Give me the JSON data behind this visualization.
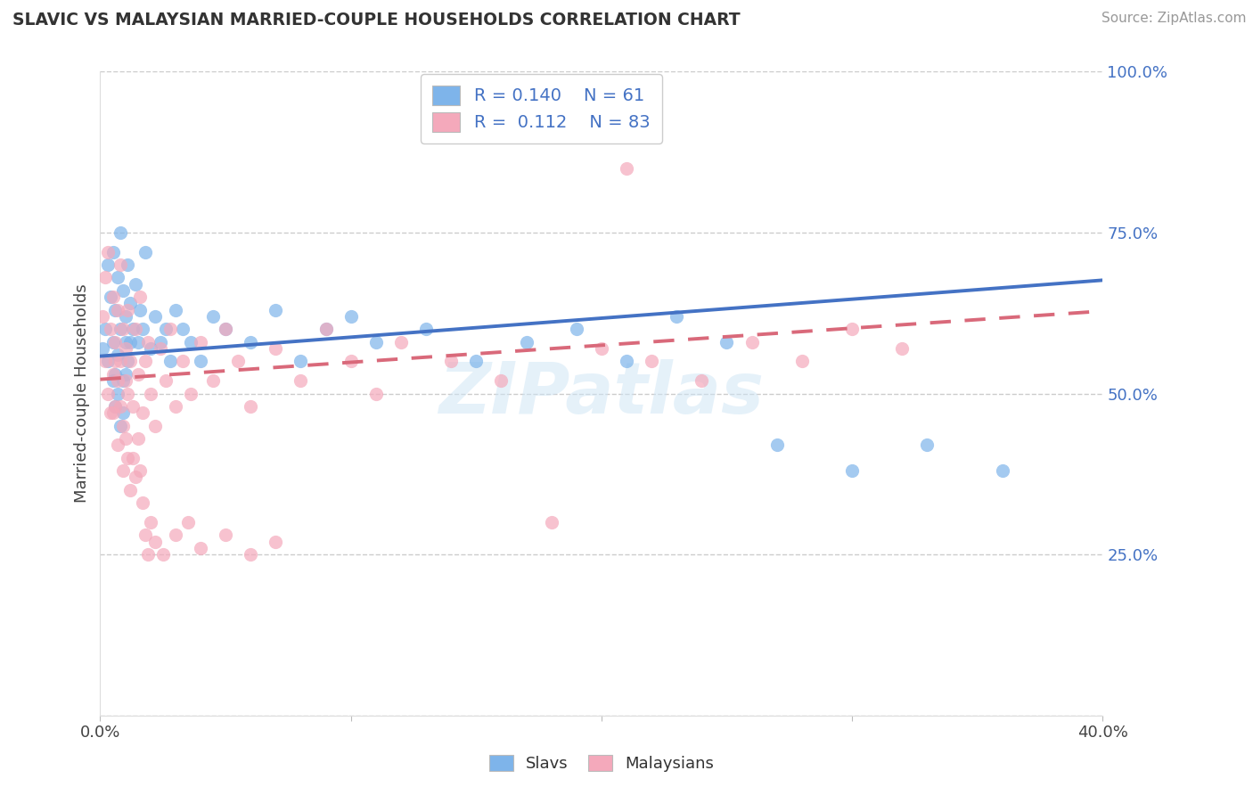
{
  "title": "SLAVIC VS MALAYSIAN MARRIED-COUPLE HOUSEHOLDS CORRELATION CHART",
  "source": "Source: ZipAtlas.com",
  "ylabel": "Married-couple Households",
  "x_min": 0.0,
  "x_max": 0.4,
  "y_min": 0.0,
  "y_max": 1.0,
  "slavs_color": "#7eb4ea",
  "malaysians_color": "#f4a9bb",
  "trend_slavs_color": "#4472c4",
  "trend_malaysians_color": "#d9697a",
  "watermark": "ZIPatlas",
  "slavs_x": [
    0.001,
    0.002,
    0.003,
    0.003,
    0.004,
    0.005,
    0.005,
    0.006,
    0.006,
    0.007,
    0.007,
    0.008,
    0.008,
    0.009,
    0.009,
    0.01,
    0.01,
    0.011,
    0.011,
    0.012,
    0.012,
    0.013,
    0.014,
    0.015,
    0.016,
    0.017,
    0.018,
    0.02,
    0.022,
    0.024,
    0.026,
    0.028,
    0.03,
    0.033,
    0.036,
    0.04,
    0.045,
    0.05,
    0.06,
    0.07,
    0.08,
    0.09,
    0.1,
    0.11,
    0.13,
    0.15,
    0.17,
    0.19,
    0.21,
    0.23,
    0.25,
    0.27,
    0.3,
    0.33,
    0.36,
    0.005,
    0.006,
    0.007,
    0.008,
    0.009,
    0.01
  ],
  "slavs_y": [
    0.57,
    0.6,
    0.55,
    0.7,
    0.65,
    0.58,
    0.72,
    0.53,
    0.63,
    0.56,
    0.68,
    0.6,
    0.75,
    0.52,
    0.66,
    0.58,
    0.62,
    0.55,
    0.7,
    0.58,
    0.64,
    0.6,
    0.67,
    0.58,
    0.63,
    0.6,
    0.72,
    0.57,
    0.62,
    0.58,
    0.6,
    0.55,
    0.63,
    0.6,
    0.58,
    0.55,
    0.62,
    0.6,
    0.58,
    0.63,
    0.55,
    0.6,
    0.62,
    0.58,
    0.6,
    0.55,
    0.58,
    0.6,
    0.55,
    0.62,
    0.58,
    0.42,
    0.38,
    0.42,
    0.38,
    0.52,
    0.48,
    0.5,
    0.45,
    0.47,
    0.53
  ],
  "malaysians_x": [
    0.001,
    0.002,
    0.002,
    0.003,
    0.003,
    0.004,
    0.004,
    0.005,
    0.005,
    0.006,
    0.006,
    0.007,
    0.007,
    0.008,
    0.008,
    0.009,
    0.009,
    0.01,
    0.01,
    0.011,
    0.011,
    0.012,
    0.013,
    0.014,
    0.015,
    0.016,
    0.017,
    0.018,
    0.019,
    0.02,
    0.022,
    0.024,
    0.026,
    0.028,
    0.03,
    0.033,
    0.036,
    0.04,
    0.045,
    0.05,
    0.055,
    0.06,
    0.07,
    0.08,
    0.09,
    0.1,
    0.11,
    0.12,
    0.14,
    0.16,
    0.18,
    0.2,
    0.22,
    0.24,
    0.26,
    0.28,
    0.3,
    0.32,
    0.005,
    0.006,
    0.007,
    0.008,
    0.009,
    0.01,
    0.011,
    0.012,
    0.013,
    0.014,
    0.015,
    0.016,
    0.017,
    0.018,
    0.019,
    0.02,
    0.022,
    0.025,
    0.03,
    0.035,
    0.04,
    0.05,
    0.06,
    0.07,
    0.21
  ],
  "malaysians_y": [
    0.62,
    0.55,
    0.68,
    0.5,
    0.72,
    0.47,
    0.6,
    0.53,
    0.65,
    0.48,
    0.58,
    0.52,
    0.63,
    0.55,
    0.7,
    0.45,
    0.6,
    0.52,
    0.57,
    0.5,
    0.63,
    0.55,
    0.48,
    0.6,
    0.53,
    0.65,
    0.47,
    0.55,
    0.58,
    0.5,
    0.45,
    0.57,
    0.52,
    0.6,
    0.48,
    0.55,
    0.5,
    0.58,
    0.52,
    0.6,
    0.55,
    0.48,
    0.57,
    0.52,
    0.6,
    0.55,
    0.5,
    0.58,
    0.55,
    0.52,
    0.3,
    0.57,
    0.55,
    0.52,
    0.58,
    0.55,
    0.6,
    0.57,
    0.47,
    0.55,
    0.42,
    0.48,
    0.38,
    0.43,
    0.4,
    0.35,
    0.4,
    0.37,
    0.43,
    0.38,
    0.33,
    0.28,
    0.25,
    0.3,
    0.27,
    0.25,
    0.28,
    0.3,
    0.26,
    0.28,
    0.25,
    0.27,
    0.85
  ],
  "trend_slavs_x0": 0.0,
  "trend_slavs_x1": 0.4,
  "trend_slavs_y0": 0.558,
  "trend_slavs_y1": 0.676,
  "trend_malay_x0": 0.0,
  "trend_malay_x1": 0.4,
  "trend_malay_y0": 0.522,
  "trend_malay_y1": 0.628
}
